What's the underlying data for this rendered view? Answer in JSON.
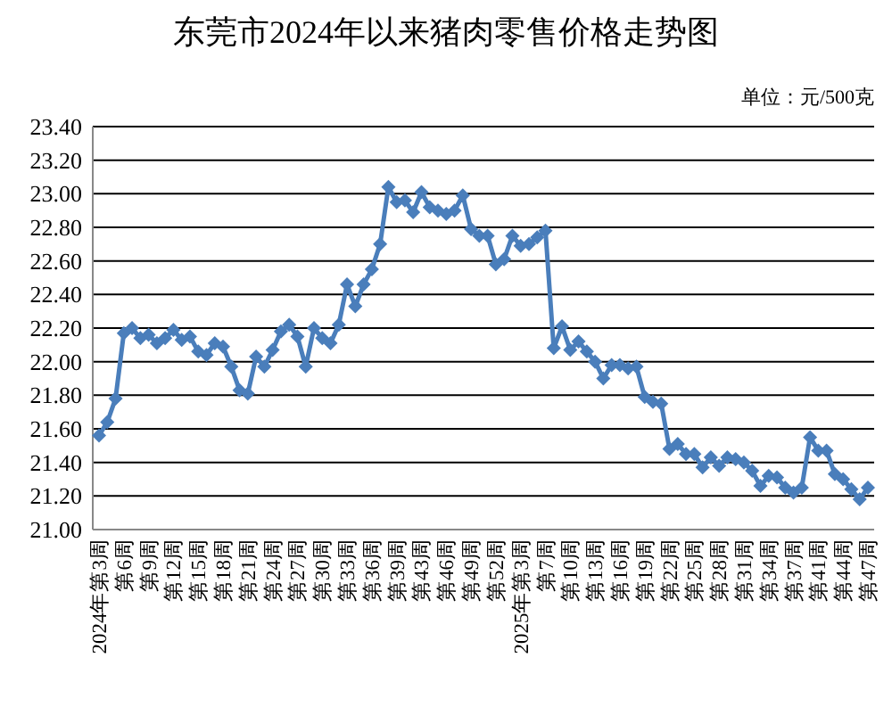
{
  "chart_data": {
    "type": "line",
    "title": "东莞市2024年以来猪肉零售价格走势图",
    "annotations": [
      "单位：元/500克"
    ],
    "categories": [
      "2024年第3周",
      null,
      null,
      "第6周",
      null,
      null,
      "第9周",
      null,
      null,
      "第12周",
      null,
      null,
      "第15周",
      null,
      null,
      "第18周",
      null,
      null,
      "第21周",
      null,
      null,
      "第24周",
      null,
      null,
      "第27周",
      null,
      null,
      "第30周",
      null,
      null,
      "第33周",
      null,
      null,
      "第36周",
      null,
      null,
      "第39周",
      null,
      null,
      "第43周",
      null,
      null,
      "第46周",
      null,
      null,
      "第49周",
      null,
      null,
      "第52周",
      null,
      null,
      "2025年第3周",
      null,
      null,
      "第7周",
      null,
      null,
      "第10周",
      null,
      null,
      "第13周",
      null,
      null,
      "第16周",
      null,
      null,
      "第19周",
      null,
      null,
      "第22周",
      null,
      null,
      "第25周",
      null,
      null,
      "第28周",
      null,
      null,
      "第31周",
      null,
      null,
      "第34周",
      null,
      null,
      "第37周",
      null,
      null,
      "第41周",
      null,
      null,
      "第44周",
      null,
      null,
      "第47周"
    ],
    "series": [
      {
        "color": "#4a7ebb",
        "values": [
          21.56,
          21.64,
          21.78,
          22.17,
          22.2,
          22.14,
          22.16,
          22.11,
          22.14,
          22.19,
          22.13,
          22.15,
          22.06,
          22.04,
          22.11,
          22.09,
          21.97,
          21.83,
          21.81,
          22.03,
          21.97,
          22.07,
          22.18,
          22.22,
          22.15,
          21.97,
          22.2,
          22.14,
          22.11,
          22.22,
          22.46,
          22.33,
          22.46,
          22.55,
          22.7,
          23.04,
          22.95,
          22.96,
          22.89,
          23.01,
          22.92,
          22.9,
          22.88,
          22.9,
          22.99,
          22.79,
          22.75,
          22.75,
          22.58,
          22.61,
          22.75,
          22.69,
          22.7,
          22.74,
          22.78,
          22.08,
          22.21,
          22.07,
          22.12,
          22.06,
          22.0,
          21.9,
          21.98,
          21.98,
          21.96,
          21.97,
          21.79,
          21.76,
          21.75,
          21.48,
          21.51,
          21.45,
          21.45,
          21.37,
          21.43,
          21.38,
          21.43,
          21.42,
          21.4,
          21.35,
          21.26,
          21.32,
          21.31,
          21.25,
          21.22,
          21.25,
          21.55,
          21.47,
          21.47,
          21.33,
          21.3,
          21.24,
          21.18,
          21.25
        ]
      }
    ],
    "ylim": [
      21,
      23.4
    ],
    "yticks": [
      {
        "value": 21,
        "label": "21.00"
      },
      {
        "value": 21.2,
        "label": "21.20"
      },
      {
        "value": 21.4,
        "label": "21.40"
      },
      {
        "value": 21.6,
        "label": "21.60"
      },
      {
        "value": 21.8,
        "label": "21.80"
      },
      {
        "value": 22,
        "label": "22.00"
      },
      {
        "value": 22.2,
        "label": "22.20"
      },
      {
        "value": 22.4,
        "label": "22.40"
      },
      {
        "value": 22.6,
        "label": "22.60"
      },
      {
        "value": 22.8,
        "label": "22.80"
      },
      {
        "value": 23,
        "label": "23.00"
      },
      {
        "value": 23.2,
        "label": "23.20"
      },
      {
        "value": 23.4,
        "label": "23.40"
      }
    ],
    "grid": "y",
    "marker": "diamond",
    "line_style": "solid"
  }
}
